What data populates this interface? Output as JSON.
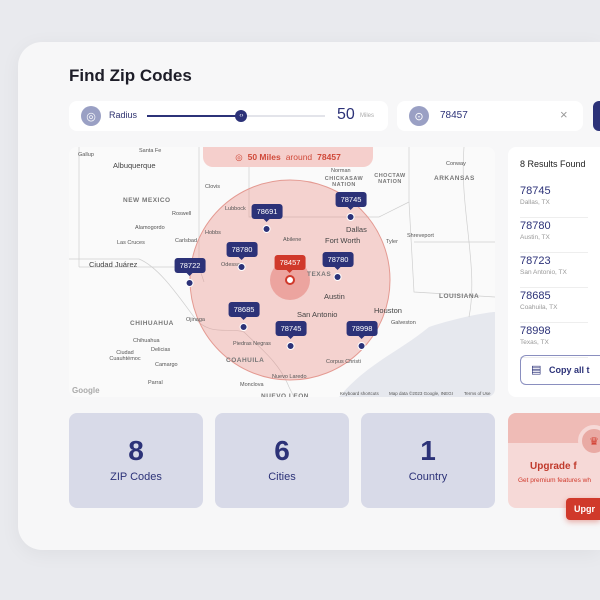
{
  "title": "Find Zip Codes",
  "radius": {
    "label": "Radius",
    "value": "50",
    "unit": "Miles",
    "fraction": 0.53
  },
  "zip": {
    "value": "78457",
    "clear": "×"
  },
  "map": {
    "banner": {
      "miles": "50 Miles",
      "around": "around",
      "zip": "78457"
    },
    "markers": [
      "78691",
      "78745",
      "78780",
      "78722",
      "78780",
      "78457",
      "78685",
      "78745",
      "78998"
    ],
    "cities": [
      "Gallup",
      "Santa Fe",
      "Albuquerque",
      "Clovis",
      "Roswell",
      "Alamogordo",
      "Carlsbad",
      "Las Cruces",
      "Hobbs",
      "Lubbock",
      "Odessa",
      "Abilene",
      "Ciudad Juárez",
      "Norman",
      "Conway",
      "Dallas",
      "Fort Worth",
      "Tyler",
      "Shreveport",
      "Austin",
      "San Antonio",
      "Houston",
      "Galveston",
      "Corpus Christi",
      "Nuevo Laredo",
      "Ojinaga",
      "Chihuahua",
      "Ciudad Cuauhtémoc",
      "Delicias",
      "Camargo",
      "Parral",
      "Piedras Negras",
      "Monclova"
    ],
    "regions": [
      "NEW MEXICO",
      "CHICKASAW NATION",
      "CHOCTAW NATION",
      "ARKANSAS",
      "TEXAS",
      "CHIHUAHUA",
      "COAHUILA",
      "LOUISIANA",
      "NUEVO LEON"
    ],
    "footer": {
      "logo": "Google",
      "shortcuts": "Keyboard shortcuts",
      "data": "Map data ©2023 Google, INEGI",
      "terms": "Terms of Use"
    }
  },
  "results": {
    "heading": "8 Results Found",
    "items": [
      {
        "zip": "78745",
        "place": "Dallas, TX"
      },
      {
        "zip": "78780",
        "place": "Austin, TX"
      },
      {
        "zip": "78723",
        "place": "San Antonio, TX"
      },
      {
        "zip": "78685",
        "place": "Coahuila, TX"
      },
      {
        "zip": "78998",
        "place": "Texas, TX"
      }
    ],
    "copy": "Copy all t"
  },
  "stats": [
    {
      "n": "8",
      "label": "ZIP Codes"
    },
    {
      "n": "6",
      "label": "Cities"
    },
    {
      "n": "1",
      "label": "Country"
    }
  ],
  "upgrade": {
    "title": "Upgrade f",
    "desc": "Get premium features wh",
    "button": "Upgr"
  },
  "colors": {
    "primary": "#2c3278",
    "accent": "#d0392b"
  }
}
